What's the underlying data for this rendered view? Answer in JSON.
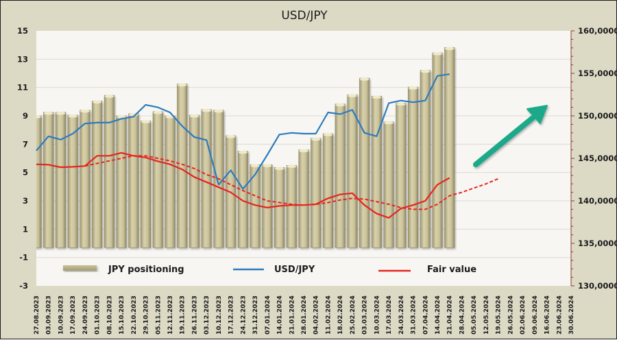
{
  "chart_data": {
    "type": "bar",
    "title": "USD/JPY",
    "xlabel": "",
    "ylabel": "",
    "ylabel_right": "",
    "grid": true,
    "legend_position": "bottom",
    "ylim": [
      -3,
      15
    ],
    "y_ticks": [
      "15",
      "13",
      "11",
      "9",
      "7",
      "5",
      "3",
      "1",
      "-1",
      "-3"
    ],
    "y_tick_values": [
      15,
      13,
      11,
      9,
      7,
      5,
      3,
      1,
      -1,
      -3
    ],
    "ylim_right": [
      130,
      160
    ],
    "y_ticks_right": [
      "160,0000",
      "155,0000",
      "150,0000",
      "145,0000",
      "140,0000",
      "135,0000",
      "130,0000"
    ],
    "y_tick_values_right": [
      160,
      155,
      150,
      145,
      140,
      135,
      130
    ],
    "bar_baseline": -0.3,
    "categories": [
      "27.08.2023",
      "03.09.2023",
      "10.09.2023",
      "17.09.2023",
      "24.09.2023",
      "01.10.2023",
      "08.10.2023",
      "15.10.2023",
      "22.10.2023",
      "29.10.2023",
      "05.11.2023",
      "12.11.2023",
      "19.11.2023",
      "26.11.2023",
      "03.12.2023",
      "10.12.2023",
      "17.12.2023",
      "24.12.2023",
      "31.12.2023",
      "07.01.2024",
      "14.01.2024",
      "21.01.2024",
      "28.01.2024",
      "04.02.2024",
      "11.02.2024",
      "18.02.2024",
      "25.02.2024",
      "03.03.2024",
      "10.03.2024",
      "17.03.2024",
      "24.03.2024",
      "31.03.2024",
      "07.04.2024",
      "14.04.2024",
      "21.04.2024",
      "28.04.2024",
      "05.05.2024",
      "12.05.2024",
      "19.05.2024",
      "26.05.2024",
      "02.06.2024",
      "09.06.2024",
      "16.06.2024",
      "23.06.2024",
      "30.06.2024"
    ],
    "series": [
      {
        "name": "JPY positioning",
        "type": "bar",
        "axis": "left",
        "color": "#c9c29a",
        "values": [
          9.0,
          9.25,
          9.25,
          9.05,
          9.4,
          10.05,
          10.45,
          9.0,
          9.15,
          8.65,
          9.3,
          9.0,
          11.25,
          9.05,
          9.45,
          9.4,
          7.6,
          6.5,
          5.55,
          5.55,
          5.35,
          5.5,
          6.6,
          7.42,
          7.74,
          9.84,
          10.49,
          11.66,
          10.39,
          8.58,
          9.9,
          11.03,
          12.21,
          13.45,
          13.82
        ]
      },
      {
        "name": "USD/JPY",
        "type": "line",
        "axis": "right",
        "color": "#2b7bbf",
        "values": [
          145.9,
          147.6,
          147.2,
          147.9,
          149.1,
          149.2,
          149.2,
          149.65,
          149.9,
          151.3,
          151.0,
          150.4,
          148.8,
          147.5,
          147.15,
          141.9,
          143.6,
          141.4,
          143.1,
          145.4,
          147.8,
          148.0,
          147.9,
          147.9,
          150.4,
          150.2,
          150.7,
          148.0,
          147.6,
          151.5,
          151.8,
          151.6,
          151.8,
          154.7,
          154.9
        ]
      },
      {
        "name": "Fair value",
        "type": "line",
        "axis": "right",
        "color": "#e8231e",
        "values": [
          144.3,
          144.25,
          143.95,
          144.0,
          144.1,
          145.3,
          145.3,
          145.65,
          145.3,
          145.1,
          144.65,
          144.3,
          143.7,
          142.8,
          142.2,
          141.6,
          141.0,
          140.0,
          139.5,
          139.2,
          139.4,
          139.5,
          139.5,
          139.6,
          140.3,
          140.75,
          140.9,
          139.5,
          138.5,
          138.0,
          139.1,
          139.5,
          140.0,
          141.9,
          142.7
        ]
      },
      {
        "name": "Fair value trend (dashed)",
        "type": "line",
        "style": "dashed",
        "axis": "right",
        "color": "#e8231e",
        "start_index": 4,
        "values": [
          144.1,
          144.4,
          144.7,
          145.0,
          145.3,
          145.3,
          145.0,
          144.7,
          144.3,
          143.8,
          143.1,
          142.6,
          141.9,
          141.2,
          140.6,
          140.0,
          139.8,
          139.6,
          139.5,
          139.6,
          139.8,
          140.1,
          140.3,
          140.2,
          139.9,
          139.6,
          139.2,
          139.0,
          139.0,
          139.6,
          140.6,
          141.0,
          141.5,
          142.0,
          142.6
        ]
      }
    ],
    "legend": [
      {
        "label": "JPY positioning",
        "kind": "bar",
        "color": "#b5ad84"
      },
      {
        "label": "USD/JPY",
        "kind": "line",
        "color": "#2b7bbf"
      },
      {
        "label": "Fair value",
        "kind": "line",
        "color": "#e8231e"
      }
    ],
    "annotations": [
      {
        "kind": "arrow",
        "direction": "up-right",
        "color": "#1aa98a",
        "meaning": "upward trend"
      }
    ]
  }
}
